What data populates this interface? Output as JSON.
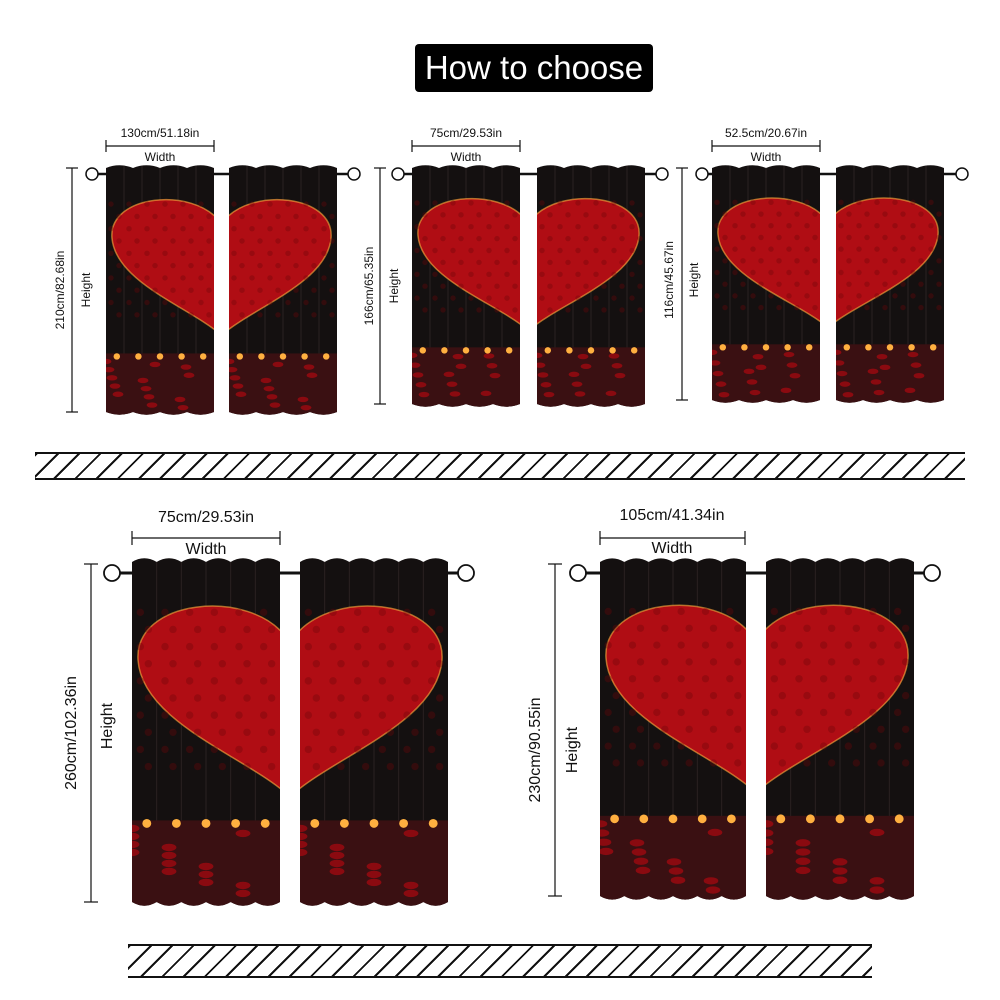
{
  "title": "How to choose",
  "options": [
    {
      "id": "opt-1",
      "width_label": "130cm/51.18in",
      "width_word": "Width",
      "height_label": "210cm/82.68in",
      "height_word": "Height"
    },
    {
      "id": "opt-2",
      "width_label": "75cm/29.53in",
      "width_word": "Width",
      "height_label": "166cm/65.35in",
      "height_word": "Height"
    },
    {
      "id": "opt-3",
      "width_label": "52.5cm/20.67in",
      "width_word": "Width",
      "height_label": "116cm/45.67in",
      "height_word": "Height"
    },
    {
      "id": "opt-4",
      "width_label": "75cm/29.53in",
      "width_word": "Width",
      "height_label": "260cm/102.36in",
      "height_word": "Height"
    },
    {
      "id": "opt-5",
      "width_label": "105cm/41.34in",
      "width_word": "Width",
      "height_label": "230cm/90.55in",
      "height_word": "Height"
    }
  ],
  "colors": {
    "background": "#ffffff",
    "curtain_dark": "#141010",
    "rose_red": "#b00d14",
    "candle_glow": "#ffb040"
  }
}
